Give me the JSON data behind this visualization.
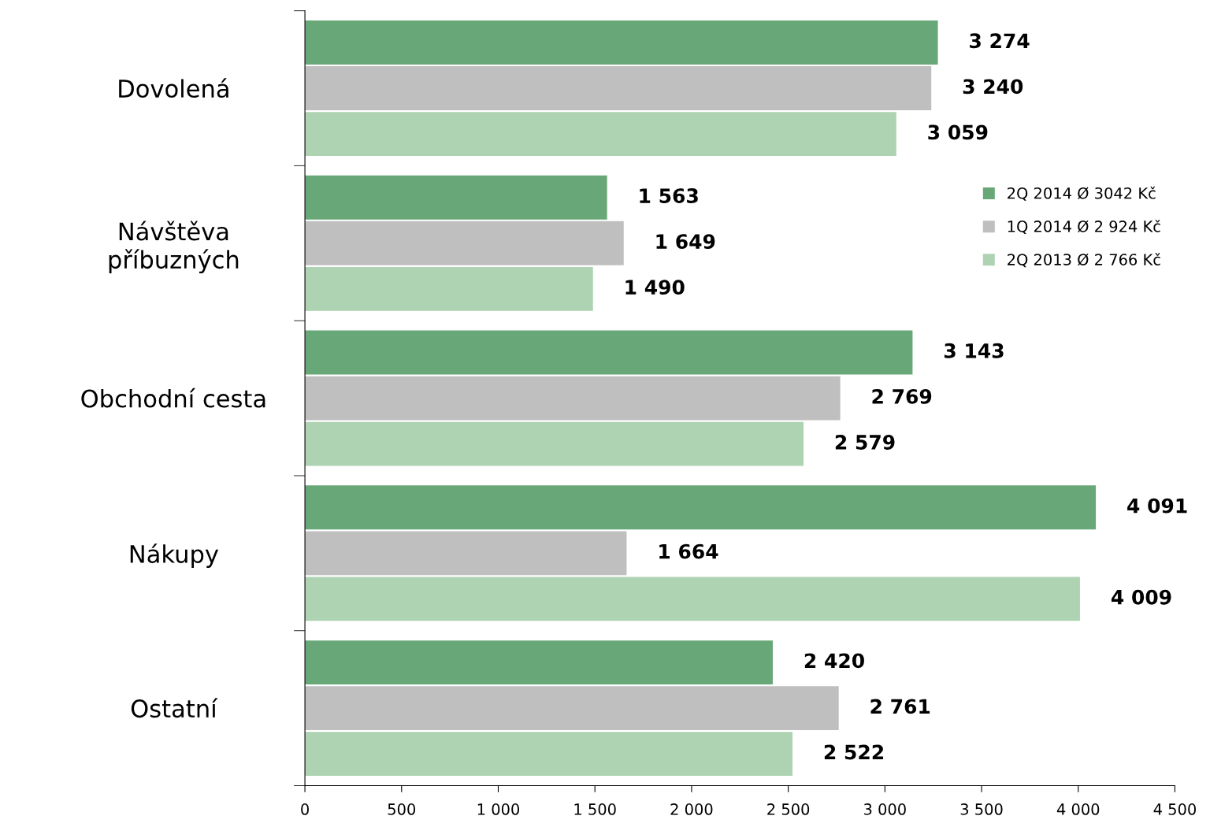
{
  "chart_data": {
    "type": "bar",
    "orientation": "horizontal",
    "categories": [
      "Dovolená",
      "Návštěva\npříbuzných",
      "Obchodní cesta",
      "Nákupy",
      "Ostatní"
    ],
    "series": [
      {
        "name": "2Q 2014 Ø 3042 Kč",
        "color": "#68a878",
        "values": [
          3274,
          1563,
          3143,
          4091,
          2420
        ],
        "value_labels": [
          "3 274",
          "1 563",
          "3 143",
          "4 091",
          "2 420"
        ]
      },
      {
        "name": "1Q 2014 Ø 2 924 Kč",
        "color": "#bfbfbf",
        "values": [
          3240,
          1649,
          2769,
          1664,
          2761
        ],
        "value_labels": [
          "3 240",
          "1 649",
          "2 769",
          "1 664",
          "2 761"
        ]
      },
      {
        "name": "2Q 2013 Ø 2 766 Kč",
        "color": "#aed3b2",
        "values": [
          3059,
          1490,
          2579,
          4009,
          2522
        ],
        "value_labels": [
          "3 059",
          "1 490",
          "2 579",
          "4 009",
          "2 522"
        ]
      }
    ],
    "xlim": [
      0,
      4500
    ],
    "xticks": [
      0,
      500,
      {
        "value": 1000,
        "label": "1 000"
      },
      {
        "value": 1500,
        "label": "1 500"
      },
      {
        "value": 2000,
        "label": "2 000"
      },
      {
        "value": 2500,
        "label": "2 500"
      },
      {
        "value": 3000,
        "label": "3 000"
      },
      {
        "value": 3500,
        "label": "3 500"
      },
      {
        "value": 4000,
        "label": "4 000"
      },
      {
        "value": 4500,
        "label": "4 500"
      }
    ],
    "grid": false,
    "legend": "right"
  }
}
